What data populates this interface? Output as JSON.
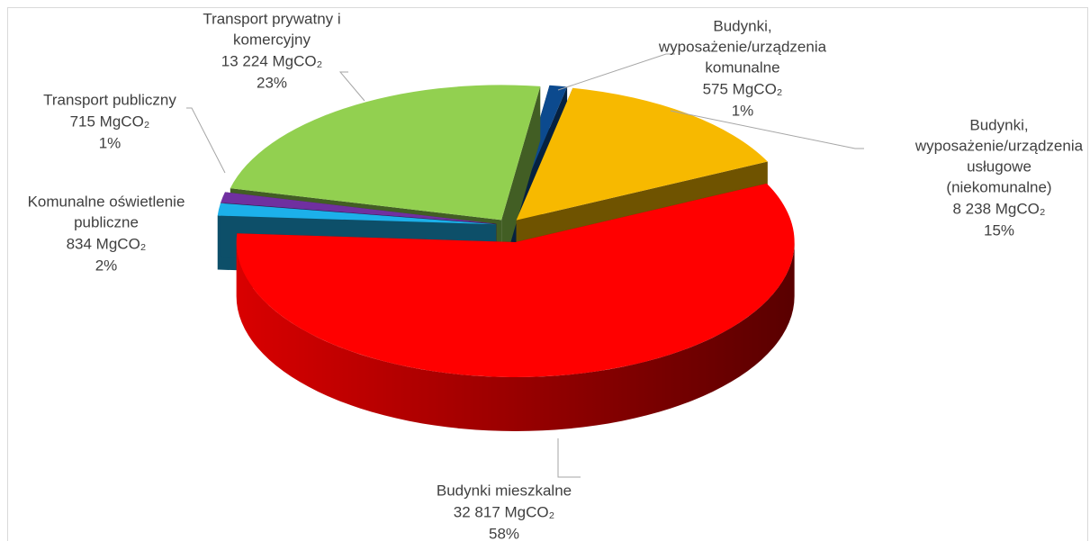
{
  "chart_data": {
    "type": "pie3d",
    "categories": [
      [
        "Budynki,",
        "wyposażenie/urządzenia",
        "komunalne"
      ],
      [
        "Budynki,",
        "wyposażenie/urządzenia",
        "usługowe",
        "(niekomunalne)"
      ],
      [
        "Budynki mieszkalne"
      ],
      [
        "Komunalne oświetlenie",
        "publiczne"
      ],
      [
        "Transport publiczny"
      ],
      [
        "Transport prywatny i",
        "komercyjny"
      ]
    ],
    "values": [
      575,
      8238,
      32817,
      834,
      715,
      13224
    ],
    "value_labels": [
      "575 MgCO₂",
      "8 238 MgCO₂",
      "32 817 MgCO₂",
      "834 MgCO₂",
      "715 MgCO₂",
      "13 224 MgCO₂"
    ],
    "percents": [
      1,
      15,
      58,
      2,
      1,
      23
    ],
    "percent_labels": [
      "1%",
      "15%",
      "58%",
      "2%",
      "1%",
      "23%"
    ],
    "colors": [
      "#0c4a8e",
      "#f7b900",
      "#ff0000",
      "#1cb0ea",
      "#7030a0",
      "#92d050"
    ]
  }
}
